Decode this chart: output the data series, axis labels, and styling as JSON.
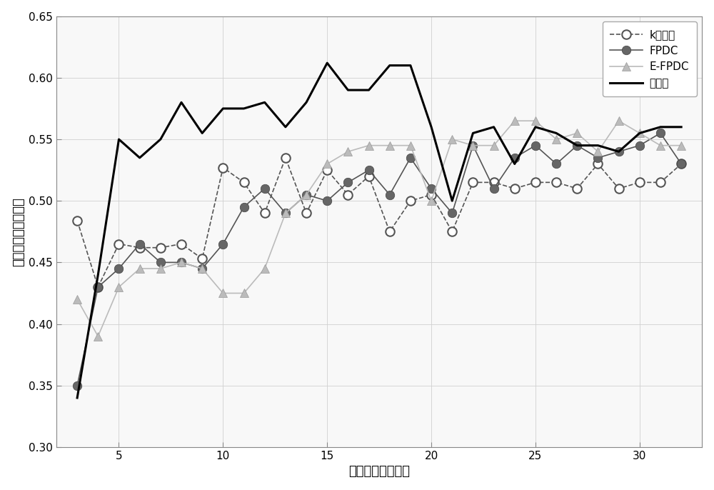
{
  "x": [
    3,
    4,
    5,
    6,
    7,
    8,
    9,
    10,
    11,
    12,
    13,
    14,
    15,
    16,
    17,
    18,
    19,
    20,
    21,
    22,
    23,
    24,
    25,
    26,
    27,
    28,
    29,
    30,
    31,
    32
  ],
  "k_medoid": [
    0.484,
    0.43,
    0.465,
    0.462,
    0.462,
    0.465,
    0.453,
    0.527,
    0.515,
    0.49,
    0.535,
    0.49,
    0.525,
    0.505,
    0.52,
    0.475,
    0.5,
    0.505,
    0.475,
    0.515,
    0.515,
    0.51,
    0.515,
    0.515,
    0.51,
    0.53,
    0.51,
    0.515,
    0.515,
    0.53
  ],
  "fpdc": [
    0.35,
    0.43,
    0.445,
    0.465,
    0.45,
    0.45,
    0.445,
    0.465,
    0.495,
    0.51,
    0.49,
    0.505,
    0.5,
    0.515,
    0.525,
    0.505,
    0.535,
    0.51,
    0.49,
    0.545,
    0.51,
    0.535,
    0.545,
    0.53,
    0.545,
    0.535,
    0.54,
    0.545,
    0.555,
    0.53
  ],
  "efpdc": [
    0.42,
    0.39,
    0.43,
    0.445,
    0.445,
    0.45,
    0.445,
    0.425,
    0.425,
    0.445,
    0.49,
    0.505,
    0.53,
    0.54,
    0.545,
    0.545,
    0.545,
    0.5,
    0.55,
    0.545,
    0.545,
    0.565,
    0.565,
    0.55,
    0.555,
    0.54,
    0.565,
    0.555,
    0.545,
    0.545
  ],
  "invention": [
    0.34,
    0.44,
    0.55,
    0.535,
    0.55,
    0.58,
    0.555,
    0.575,
    0.575,
    0.58,
    0.56,
    0.58,
    0.612,
    0.59,
    0.59,
    0.61,
    0.61,
    0.56,
    0.5,
    0.555,
    0.56,
    0.53,
    0.56,
    0.555,
    0.545,
    0.545,
    0.54,
    0.555,
    0.56,
    0.56
  ],
  "xlim": [
    2,
    33
  ],
  "ylim": [
    0.3,
    0.65
  ],
  "yticks": [
    0.3,
    0.35,
    0.4,
    0.45,
    0.5,
    0.55,
    0.6,
    0.65
  ],
  "xticks": [
    5,
    10,
    15,
    20,
    25,
    30
  ],
  "xlabel": "选择的波段数目：",
  "ylabel": "分类的整体正确率：",
  "legend_k": "k中心点",
  "legend_fpdc": "FPDC",
  "legend_efpdc": "E-FPDC",
  "legend_inv": "本发明",
  "k_color": "#555555",
  "fpdc_color": "#555555",
  "efpdc_color": "#bbbbbb",
  "inv_color": "#000000",
  "bg_color": "#ffffff",
  "grid_color": "#d0d0d0"
}
